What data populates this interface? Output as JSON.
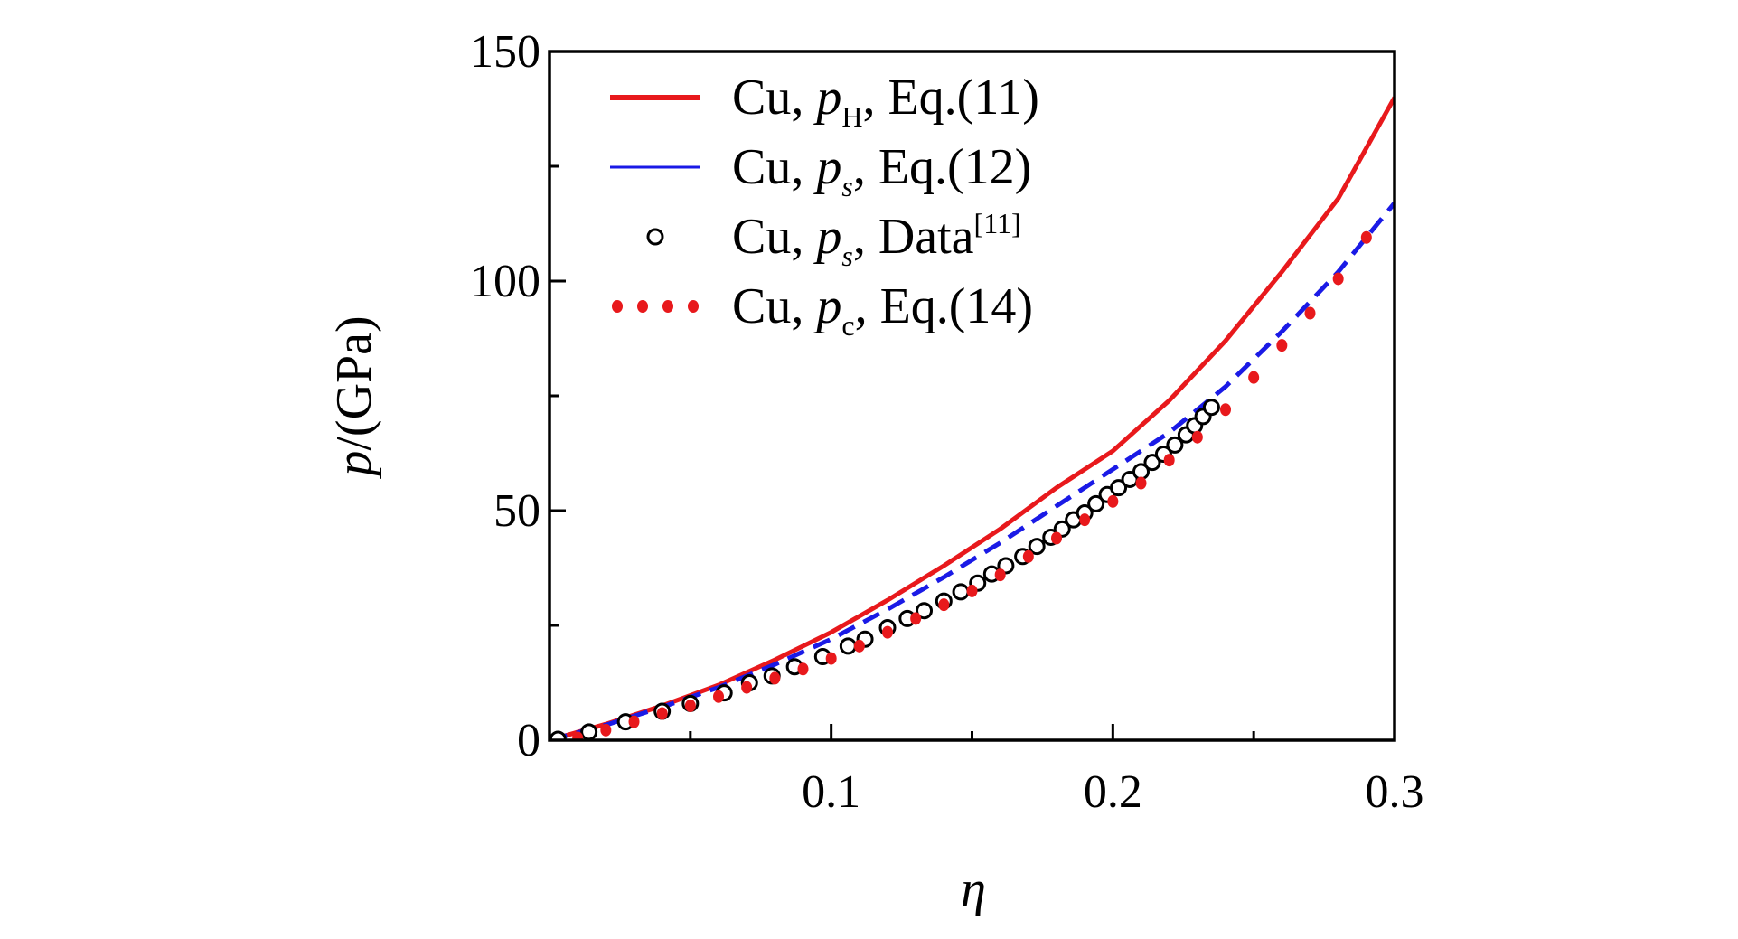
{
  "chart_data": {
    "type": "line",
    "title": "",
    "xlabel": "η",
    "ylabel_symbol": "p",
    "ylabel_unit": "/(GPa)",
    "xlim": [
      0,
      0.3
    ],
    "ylim": [
      0,
      150
    ],
    "x_ticks": [
      0.1,
      0.2,
      0.3
    ],
    "x_tick_labels": [
      "0.1",
      "0.2",
      "0.3"
    ],
    "y_ticks": [
      0,
      50,
      100,
      150
    ],
    "y_tick_labels": [
      "0",
      "50",
      "100",
      "150"
    ],
    "minor_x_ticks": [
      0.05,
      0.15,
      0.25
    ],
    "minor_y_ticks": [
      25,
      75,
      125
    ],
    "legend_position": "top-left",
    "series": [
      {
        "name": "Cu, p_H, Eq.(11)",
        "legend": {
          "prefix": "Cu, ",
          "symbol": "p",
          "sub": "H",
          "suffix": ", Eq.(11)",
          "sup": ""
        },
        "style": "solid",
        "color": "#e8191c",
        "x": [
          0,
          0.02,
          0.04,
          0.06,
          0.08,
          0.1,
          0.12,
          0.14,
          0.16,
          0.18,
          0.2,
          0.22,
          0.24,
          0.26,
          0.28,
          0.3
        ],
        "y": [
          0,
          3.5,
          7.5,
          12,
          17.5,
          23.5,
          30.5,
          38,
          46,
          55,
          63,
          74,
          87,
          102,
          118,
          140
        ]
      },
      {
        "name": "Cu, p_s, Eq.(12)",
        "legend": {
          "prefix": "Cu, ",
          "symbol": "p",
          "sub": "s",
          "suffix": ", Eq.(12)",
          "sup": ""
        },
        "style": "dashed",
        "color": "#1a1ae6",
        "x": [
          0,
          0.02,
          0.04,
          0.06,
          0.08,
          0.1,
          0.12,
          0.14,
          0.16,
          0.18,
          0.2,
          0.22,
          0.24,
          0.26,
          0.28,
          0.3
        ],
        "y": [
          0,
          3.3,
          7.2,
          11.5,
          16.5,
          22,
          28.5,
          35.5,
          43,
          51,
          59,
          67,
          77,
          89,
          102,
          117
        ]
      },
      {
        "name": "Cu, p_s, Data[11]",
        "legend": {
          "prefix": "Cu, ",
          "symbol": "p",
          "sub": "s",
          "suffix": ", Data",
          "sup": "[11]"
        },
        "style": "markers",
        "color": "#000000",
        "x": [
          0.003,
          0.014,
          0.027,
          0.04,
          0.05,
          0.062,
          0.071,
          0.079,
          0.087,
          0.097,
          0.106,
          0.112,
          0.12,
          0.127,
          0.133,
          0.14,
          0.146,
          0.152,
          0.157,
          0.162,
          0.168,
          0.173,
          0.178,
          0.182,
          0.186,
          0.19,
          0.194,
          0.198,
          0.202,
          0.206,
          0.21,
          0.214,
          0.218,
          0.222,
          0.226,
          0.229,
          0.232,
          0.235
        ],
        "y": [
          0.2,
          1.8,
          4,
          6.3,
          8,
          10.3,
          12.5,
          14,
          16,
          18.2,
          20.5,
          22,
          24.5,
          26.5,
          28.2,
          30.3,
          32.3,
          34.2,
          36.2,
          38,
          40,
          42.2,
          44.2,
          46,
          48,
          49.5,
          51.5,
          53.5,
          55,
          56.8,
          58.5,
          60.5,
          62.3,
          64.3,
          66.5,
          68.5,
          70.5,
          72.5
        ]
      },
      {
        "name": "Cu, p_c, Eq.(14)",
        "legend": {
          "prefix": "Cu, ",
          "symbol": "p",
          "sub": "c",
          "suffix": ", Eq.(14)",
          "sup": ""
        },
        "style": "dotted",
        "color": "#e8191c",
        "x": [
          0.01,
          0.02,
          0.03,
          0.04,
          0.05,
          0.06,
          0.07,
          0.08,
          0.09,
          0.1,
          0.11,
          0.12,
          0.13,
          0.14,
          0.15,
          0.16,
          0.17,
          0.18,
          0.19,
          0.2,
          0.21,
          0.22,
          0.23,
          0.24,
          0.25,
          0.26,
          0.27,
          0.28,
          0.29
        ],
        "y": [
          0.5,
          2.2,
          4,
          5.8,
          7.5,
          9.5,
          11.5,
          13.5,
          15.5,
          17.8,
          20.5,
          23.5,
          26.5,
          29.5,
          32.5,
          36,
          40,
          44,
          48,
          52,
          56,
          61,
          66,
          72,
          79,
          86,
          93,
          100.5,
          109.5
        ]
      }
    ]
  }
}
